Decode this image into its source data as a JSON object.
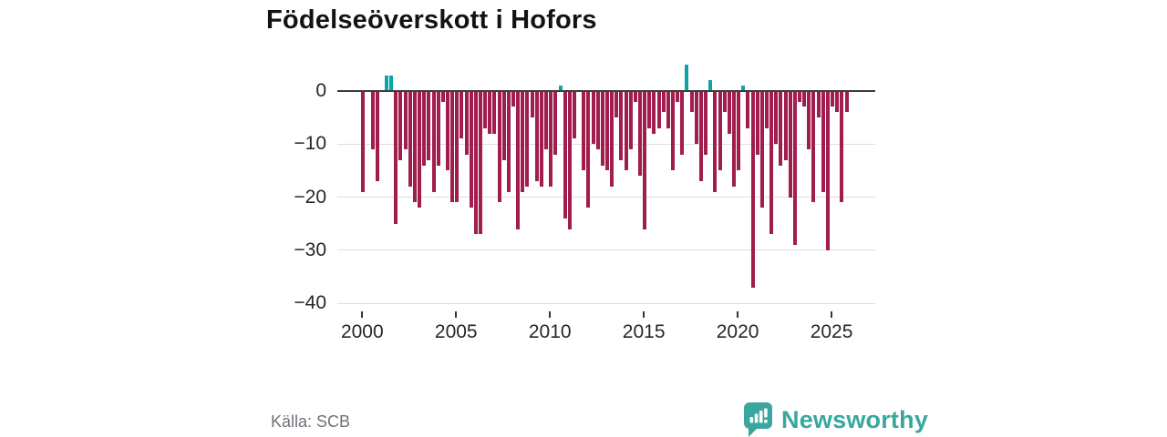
{
  "title": "Födelseöverskott i Hofors",
  "source": "Källa: SCB",
  "brand": {
    "name": "Newsworthy",
    "color": "#3aa79f"
  },
  "chart_data": {
    "type": "bar",
    "title": "Födelseöverskott i Hofors",
    "frequency": "quarterly",
    "x_start_label": "2000 Q1",
    "x_end_label": "2025 Q4",
    "values": [
      -19,
      0,
      -11,
      -17,
      0,
      3,
      3,
      -25,
      -13,
      -11,
      -18,
      -21,
      -22,
      -14,
      -13,
      -19,
      -14,
      -2,
      -15,
      -21,
      -21,
      -9,
      -12,
      -22,
      -27,
      -27,
      -7,
      -8,
      -8,
      -21,
      -13,
      -19,
      -3,
      -26,
      -19,
      -18,
      -5,
      -17,
      -18,
      -11,
      -18,
      -12,
      1,
      -24,
      -26,
      -9,
      0,
      -15,
      -22,
      -10,
      -11,
      -14,
      -15,
      -18,
      -5,
      -13,
      -15,
      -11,
      -2,
      -16,
      -26,
      -7,
      -8,
      -7,
      -4,
      -7,
      -15,
      -2,
      -12,
      5,
      -4,
      -10,
      -17,
      -12,
      2,
      -19,
      -15,
      -4,
      -8,
      -18,
      -15,
      1,
      -7,
      -37,
      -12,
      -22,
      -7,
      -27,
      -10,
      -14,
      -13,
      -20,
      -29,
      -2,
      -3,
      -11,
      -21,
      -5,
      -19,
      -30,
      -3,
      -4,
      -21,
      -4
    ],
    "yticks": [
      0,
      -10,
      -20,
      -30,
      -40
    ],
    "y_tick_labels": [
      "0",
      "−10",
      "−20",
      "−30",
      "−40"
    ],
    "xticks": [
      2000,
      2005,
      2010,
      2015,
      2020,
      2025
    ],
    "x_tick_labels": [
      "2000",
      "2005",
      "2010",
      "2015",
      "2020",
      "2025"
    ],
    "ylim": [
      -40,
      5
    ],
    "grid": true,
    "legend": false,
    "negative_color": "#a01d4d",
    "positive_color": "#0ba5a5",
    "ylabel": "",
    "xlabel": ""
  }
}
